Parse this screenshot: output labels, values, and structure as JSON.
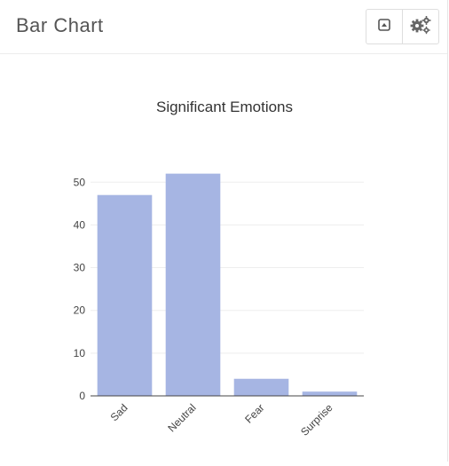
{
  "panel": {
    "title": "Bar Chart",
    "toolbar": {
      "collapse_icon": "collapse-up-icon",
      "settings_icon": "gears-icon"
    }
  },
  "chart_data": {
    "type": "bar",
    "title": "Significant Emotions",
    "categories": [
      "Sad",
      "Neutral",
      "Fear",
      "Surprise"
    ],
    "values": [
      47,
      52,
      4,
      1
    ],
    "ylim": [
      0,
      54
    ],
    "yticks": [
      0,
      10,
      20,
      30,
      40,
      50
    ],
    "xlabel": "",
    "ylabel": "",
    "grid": true,
    "bar_color": "#a6b5e3"
  }
}
